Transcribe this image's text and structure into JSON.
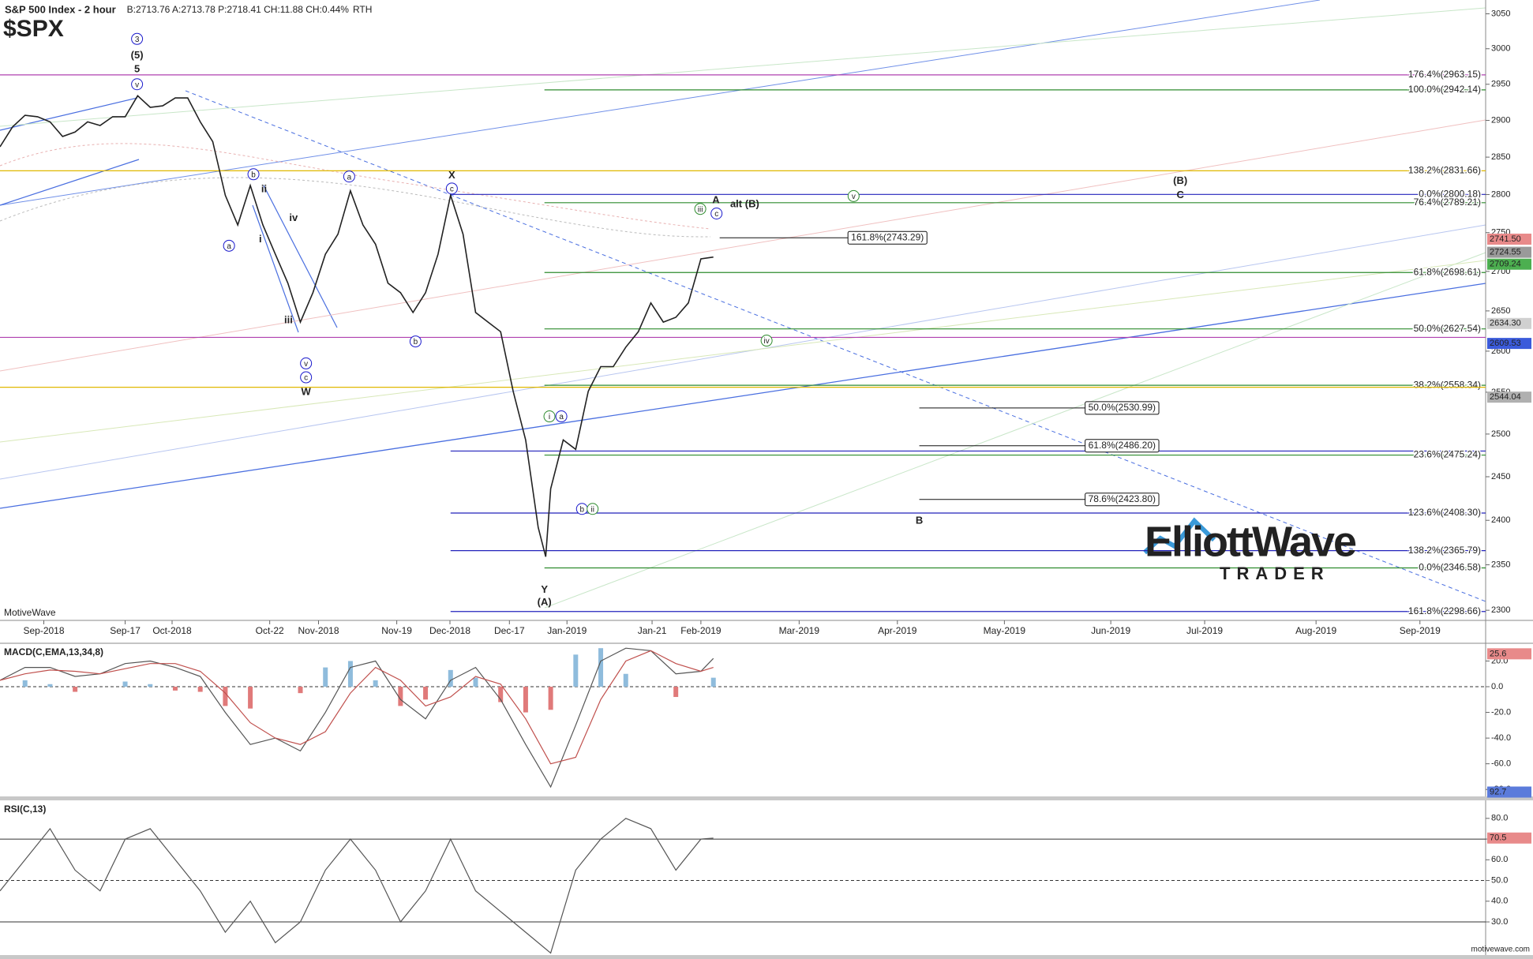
{
  "chart_data": [
    {
      "type": "line",
      "title": "S&P 500 Index - 2 hour",
      "quote": "B:2713.76 A:2713.78 P:2718.41 CH:11.88 CH:0.44%",
      "session": "RTH",
      "symbol": "$SPX",
      "source": "MotiveWave",
      "logo": {
        "title": "ElliottWave",
        "subtitle": "TRADER"
      },
      "log_scale": true,
      "x": [
        0,
        2,
        4,
        6,
        8,
        10,
        12,
        14,
        16,
        18,
        20,
        22,
        24,
        26,
        28,
        30,
        32,
        34,
        36,
        38,
        40,
        42,
        44,
        46,
        48,
        50,
        52,
        54,
        56,
        58,
        60,
        62,
        64,
        66,
        68,
        70,
        72,
        74,
        76,
        78,
        80,
        82,
        84,
        86,
        87.2,
        88,
        90,
        92,
        94,
        96,
        98,
        100,
        102,
        104,
        106,
        108,
        110,
        112,
        114
      ],
      "series": [
        {
          "color": "#222222",
          "values": [
            2864,
            2891,
            2907,
            2905,
            2898,
            2878,
            2884,
            2898,
            2893,
            2905,
            2905,
            2934,
            2918,
            2920,
            2931,
            2931,
            2898,
            2871,
            2799,
            2760,
            2812,
            2760,
            2722,
            2685,
            2636,
            2673,
            2722,
            2748,
            2805,
            2760,
            2735,
            2685,
            2673,
            2648,
            2673,
            2722,
            2799,
            2748,
            2648,
            2636,
            2624,
            2551,
            2493,
            2392,
            2359,
            2436,
            2493,
            2482,
            2551,
            2581,
            2581,
            2605,
            2624,
            2660,
            2636,
            2642,
            2660,
            2716,
            2718.41
          ]
        }
      ],
      "xlim": [
        0,
        237.4
      ],
      "xticks": [
        {
          "value": 7,
          "label": "Sep-2018"
        },
        {
          "value": 20,
          "label": "Sep-17"
        },
        {
          "value": 27.5,
          "label": "Oct-2018"
        },
        {
          "value": 43.1,
          "label": "Oct-22"
        },
        {
          "value": 50.9,
          "label": "Nov-2018"
        },
        {
          "value": 63.4,
          "label": "Nov-19"
        },
        {
          "value": 71.9,
          "label": "Dec-2018"
        },
        {
          "value": 81.4,
          "label": "Dec-17"
        },
        {
          "value": 90.6,
          "label": "Jan-2019"
        },
        {
          "value": 104.2,
          "label": "Jan-21"
        },
        {
          "value": 112,
          "label": "Feb-2019"
        },
        {
          "value": 127.7,
          "label": "Mar-2019"
        },
        {
          "value": 143.4,
          "label": "Apr-2019"
        },
        {
          "value": 160.5,
          "label": "May-2019"
        },
        {
          "value": 177.5,
          "label": "Jun-2019"
        },
        {
          "value": 192.5,
          "label": "Jul-2019"
        },
        {
          "value": 210.3,
          "label": "Aug-2019"
        },
        {
          "value": 226.9,
          "label": "Sep-2019"
        }
      ],
      "ylim": [
        2289,
        3070
      ],
      "yticks": [
        3050,
        3000,
        2950,
        2900,
        2850,
        2800,
        2750,
        2700,
        2650,
        2600,
        2550,
        2500,
        2450,
        2400,
        2350,
        2300
      ],
      "price_tags": [
        {
          "value": 2741.5,
          "label": "2741.50",
          "color": "#e88a8a"
        },
        {
          "value": 2724.55,
          "label": "2724.55",
          "color": "#9a9a9a"
        },
        {
          "value": 2709.24,
          "label": "2709.24",
          "color": "#4caf50"
        },
        {
          "value": 2634.3,
          "label": "2634.30",
          "color": "#d0d0d0"
        },
        {
          "value": 2609.53,
          "label": "2609.53",
          "color": "#3b5bdb"
        },
        {
          "value": 2544.04,
          "label": "2544.04",
          "color": "#b0b0b0"
        }
      ],
      "levels": [
        {
          "value": 2963.15,
          "label": "176.4%(2963.15)",
          "color": "#b040b0",
          "from": 0
        },
        {
          "value": 2942.14,
          "label": "100.0%(2942.14)",
          "color": "#2e8b2e",
          "from": 87
        },
        {
          "value": 2831.66,
          "label": "138.2%(2831.66)",
          "color": "#e0b800",
          "from": 0
        },
        {
          "value": 2800.18,
          "label": "0.0%(2800.18)",
          "color": "#2222bb",
          "from": 72
        },
        {
          "value": 2789.21,
          "label": "76.4%(2789.21)",
          "color": "#2e8b2e",
          "from": 87
        },
        {
          "value": 2698.61,
          "label": "61.8%(2698.61)",
          "color": "#2e8b2e",
          "from": 87
        },
        {
          "value": 2627.54,
          "label": "50.0%(2627.54)",
          "color": "#2e8b2e",
          "from": 87
        },
        {
          "value": 2617,
          "color": "#b040b0",
          "from": 0
        },
        {
          "value": 2558.34,
          "label": "38.2%(2558.34)",
          "color": "#2e8b2e",
          "from": 87
        },
        {
          "value": 2556,
          "color": "#e0b800",
          "from": 0
        },
        {
          "value": 2480,
          "color": "#2222bb",
          "from": 72
        },
        {
          "value": 2475.24,
          "label": "23.6%(2475.24)",
          "color": "#2e8b2e",
          "from": 87
        },
        {
          "value": 2408.3,
          "label": "123.6%(2408.30)",
          "color": "#2222bb",
          "from": 72
        },
        {
          "value": 2365.79,
          "label": "138.2%(2365.79)",
          "color": "#2222bb",
          "from": 72
        },
        {
          "value": 2346.58,
          "label": "0.0%(2346.58)",
          "color": "#2e8b2e",
          "from": 87
        },
        {
          "value": 2298.66,
          "label": "161.8%(2298.66)",
          "color": "#2222bb",
          "from": 72
        }
      ],
      "boxed_levels": [
        {
          "value": 2743.29,
          "label": "161.8%(2743.29)",
          "from": 115,
          "to": 135.5
        },
        {
          "value": 2530.99,
          "label": "50.0%(2530.99)",
          "from": 146.9,
          "to": 173.4
        },
        {
          "value": 2486.2,
          "label": "61.8%(2486.20)",
          "from": 146.9,
          "to": 173.4
        },
        {
          "value": 2423.8,
          "label": "78.6%(2423.80)",
          "from": 146.9,
          "to": 173.4
        }
      ],
      "waves": [
        {
          "label": "3",
          "x": 21.9,
          "y": 3014,
          "color": "#1a1acc",
          "circled": true
        },
        {
          "label": "(5)",
          "x": 21.9,
          "y": 2991,
          "color": "#1a1acc",
          "circled": false
        },
        {
          "label": "5",
          "x": 21.9,
          "y": 2972,
          "color": "#1a1acc",
          "circled": false
        },
        {
          "label": "v",
          "x": 21.9,
          "y": 2950,
          "color": "#1a1acc",
          "circled": true
        },
        {
          "label": "a",
          "x": 36.6,
          "y": 2733,
          "color": "#1a1acc",
          "circled": true
        },
        {
          "label": "b",
          "x": 40.5,
          "y": 2827,
          "color": "#1a1acc",
          "circled": true
        },
        {
          "label": "ii",
          "x": 42.2,
          "y": 2808,
          "color": "#1a1acc",
          "circled": false
        },
        {
          "label": "i",
          "x": 41.6,
          "y": 2742,
          "color": "#1a1acc",
          "circled": false
        },
        {
          "label": "iv",
          "x": 46.9,
          "y": 2770,
          "color": "#1a1acc",
          "circled": false
        },
        {
          "label": "iii",
          "x": 46.1,
          "y": 2639,
          "color": "#1a1acc",
          "circled": false
        },
        {
          "label": "v",
          "x": 48.9,
          "y": 2585,
          "color": "#1a1acc",
          "circled": true
        },
        {
          "label": "c",
          "x": 48.9,
          "y": 2568,
          "color": "#1a1acc",
          "circled": true
        },
        {
          "label": "W",
          "x": 48.9,
          "y": 2551,
          "color": "#1a1acc",
          "circled": false
        },
        {
          "label": "a",
          "x": 55.8,
          "y": 2824,
          "color": "#1a1acc",
          "circled": true
        },
        {
          "label": "b",
          "x": 66.4,
          "y": 2612,
          "color": "#1a1acc",
          "circled": true
        },
        {
          "label": "X",
          "x": 72.2,
          "y": 2826,
          "color": "#1a1acc",
          "circled": false
        },
        {
          "label": "c",
          "x": 72.2,
          "y": 2808,
          "color": "#1a1acc",
          "circled": true
        },
        {
          "label": "Y",
          "x": 87,
          "y": 2323,
          "color": "#1a1acc",
          "circled": false
        },
        {
          "label": "(A)",
          "x": 87,
          "y": 2309,
          "color": "#1a1acc",
          "circled": false
        },
        {
          "label": "i",
          "x": 87.8,
          "y": 2521,
          "color": "#2e8b2e",
          "circled": true
        },
        {
          "label": "a",
          "x": 89.7,
          "y": 2521,
          "color": "#1a1acc",
          "circled": true
        },
        {
          "label": "b",
          "x": 93,
          "y": 2413,
          "color": "#1a1acc",
          "circled": true
        },
        {
          "label": "ii",
          "x": 94.7,
          "y": 2413,
          "color": "#2e8b2e",
          "circled": true
        },
        {
          "label": "iii",
          "x": 111.9,
          "y": 2781,
          "color": "#2e8b2e",
          "circled": true
        },
        {
          "label": "A",
          "x": 114.4,
          "y": 2793,
          "color": "#1a1acc",
          "circled": false
        },
        {
          "label": "c",
          "x": 114.5,
          "y": 2775,
          "color": "#1a1acc",
          "circled": true
        },
        {
          "label": "alt (B)",
          "x": 119,
          "y": 2788,
          "color": "#e01010",
          "circled": false
        },
        {
          "label": "iv",
          "x": 122.5,
          "y": 2613,
          "color": "#2e8b2e",
          "circled": true
        },
        {
          "label": "v",
          "x": 136.4,
          "y": 2798,
          "color": "#2e8b2e",
          "circled": true
        },
        {
          "label": "(B)",
          "x": 188.6,
          "y": 2819,
          "color": "#1a1acc",
          "circled": false
        },
        {
          "label": "C",
          "x": 188.6,
          "y": 2800,
          "color": "#1a1acc",
          "circled": false
        },
        {
          "label": "B",
          "x": 146.9,
          "y": 2400,
          "color": "#1a1acc",
          "circled": false
        }
      ]
    },
    {
      "type": "macd",
      "title": "MACD(C,EMA,13,34,8)",
      "x": [
        0,
        4,
        8,
        12,
        16,
        20,
        24,
        28,
        32,
        36,
        40,
        44,
        48,
        52,
        56,
        60,
        64,
        68,
        72,
        76,
        80,
        84,
        88,
        92,
        96,
        100,
        104,
        108,
        112,
        114
      ],
      "series": [
        {
          "color": "#555555",
          "values": [
            5,
            15,
            15,
            8,
            10,
            18,
            20,
            15,
            8,
            -20,
            -45,
            -40,
            -50,
            -20,
            15,
            20,
            -10,
            -25,
            5,
            15,
            -10,
            -45,
            -78,
            -30,
            20,
            30,
            28,
            10,
            12,
            22
          ]
        },
        {
          "color": "#c0504d",
          "values": [
            5,
            10,
            13,
            12,
            10,
            14,
            18,
            18,
            12,
            -5,
            -28,
            -40,
            -45,
            -35,
            -5,
            15,
            5,
            -15,
            -8,
            8,
            2,
            -25,
            -60,
            -55,
            -10,
            20,
            28,
            18,
            12,
            15
          ]
        }
      ],
      "histogram": {
        "pos_color": "#8fbcdc",
        "neg_color": "#e07a7a",
        "values": [
          0,
          5,
          2,
          -4,
          0,
          4,
          2,
          -3,
          -4,
          -15,
          -17,
          0,
          -5,
          15,
          20,
          5,
          -15,
          -10,
          13,
          7,
          -12,
          -20,
          -18,
          25,
          30,
          10,
          0,
          -8,
          0,
          7
        ]
      },
      "xlim": [
        0,
        237.4
      ],
      "ylim": [
        -85.4,
        33.8
      ],
      "yticks": [
        {
          "value": 20,
          "label": "20.0"
        },
        {
          "value": 0,
          "label": "0.0"
        },
        {
          "value": -20,
          "label": "-20.0"
        },
        {
          "value": -40,
          "label": "-40.0"
        },
        {
          "value": -60,
          "label": "-60.0"
        },
        {
          "value": -80,
          "label": "-80.0"
        }
      ],
      "ref_lines": [
        {
          "value": 0,
          "dashed": true
        }
      ],
      "tags": [
        {
          "value": 25.6,
          "color": "#e88a8a"
        }
      ]
    },
    {
      "type": "line",
      "title": "RSI(C,13)",
      "x": [
        0,
        4,
        8,
        12,
        16,
        20,
        24,
        28,
        32,
        36,
        40,
        44,
        48,
        52,
        56,
        60,
        64,
        68,
        72,
        76,
        80,
        84,
        88,
        92,
        96,
        100,
        104,
        108,
        112,
        114
      ],
      "series": [
        {
          "color": "#555555",
          "values": [
            45,
            60,
            75,
            55,
            45,
            70,
            75,
            60,
            45,
            25,
            40,
            20,
            30,
            55,
            70,
            55,
            30,
            45,
            70,
            45,
            35,
            25,
            15,
            55,
            70,
            80,
            75,
            55,
            70,
            70.5
          ]
        }
      ],
      "xlim": [
        0,
        237.4
      ],
      "ylim": [
        14,
        88.7
      ],
      "yticks": [
        {
          "value": 80,
          "label": "80.0"
        },
        {
          "value": 70,
          "label": "70.0"
        },
        {
          "value": 60,
          "label": "60.0"
        },
        {
          "value": 50,
          "label": "50.0"
        },
        {
          "value": 40,
          "label": "40.0"
        },
        {
          "value": 30,
          "label": "30.0"
        }
      ],
      "ref_lines": [
        {
          "value": 70,
          "dashed": false
        },
        {
          "value": 50,
          "dashed": true
        },
        {
          "value": 30,
          "dashed": false
        }
      ],
      "tags": [
        {
          "value": 92.7,
          "color": "#5b7bdb"
        },
        {
          "value": 70.5,
          "color": "#e88a8a"
        }
      ]
    }
  ],
  "footer": "motivewave.com"
}
